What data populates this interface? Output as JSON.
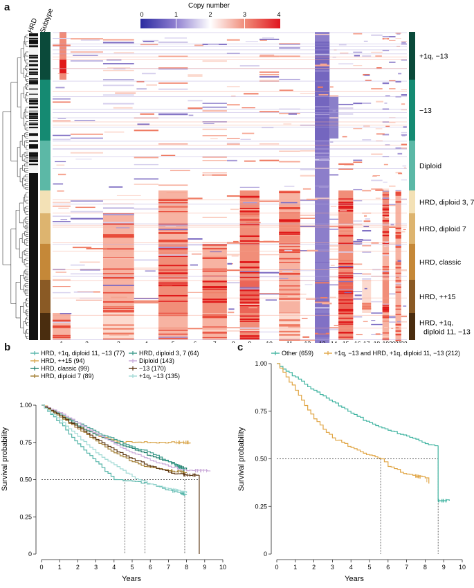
{
  "panels": {
    "a": "a",
    "b": "b",
    "c": "c"
  },
  "heatmap": {
    "col_hrd": "HRD",
    "col_subtype": "Subtype",
    "colorbar_title": "Copy number",
    "colorbar_ticks": [
      "0",
      "1",
      "2",
      "3",
      "4"
    ],
    "chromosomes": [
      "1",
      "2",
      "3",
      "4",
      "5",
      "6",
      "7",
      "8",
      "9",
      "10",
      "11",
      "12",
      "13",
      "14",
      "15",
      "16",
      "17",
      "18",
      "19",
      "20",
      "21",
      "22"
    ],
    "groups": [
      {
        "label": "+1q, −13",
        "color": "#0b4a3a"
      },
      {
        "label": "−13",
        "color": "#158a72"
      },
      {
        "label": "Diploid",
        "color": "#5cb8a6"
      },
      {
        "label": "HRD, diploid 3, 7",
        "color": "#f3e1b6"
      },
      {
        "label": "HRD, diploid 7",
        "color": "#ddb46f"
      },
      {
        "label": "HRD, classic",
        "color": "#c58838"
      },
      {
        "label": "HRD, ++15",
        "color": "#8a5a25"
      },
      {
        "label": "HRD, +1q,",
        "label2": "diploid 11, −13",
        "color": "#4a2d0f"
      }
    ]
  },
  "plot_b": {
    "legend": [
      {
        "label": "HRD, +1q, diploid 11, −13 (77)",
        "color": "#52b3a7"
      },
      {
        "label": "HRD, ++15 (94)",
        "color": "#d8a449"
      },
      {
        "label": "HRD, classic (99)",
        "color": "#1d7c6a"
      },
      {
        "label": "HRD, diploid 7 (89)",
        "color": "#a07a2c"
      },
      {
        "label": "HRD, diploid 3, 7 (64)",
        "color": "#3a9a8a"
      },
      {
        "label": "Diploid (143)",
        "color": "#c8a7d8"
      },
      {
        "label": "−13 (170)",
        "color": "#5b3410"
      },
      {
        "label": "+1q, −13 (135)",
        "color": "#9fd9d4"
      }
    ],
    "ylabel": "Survival probability",
    "xlabel": "Years",
    "yticks": [
      "0",
      "0.25",
      "0.50",
      "0.75",
      "1.00"
    ],
    "xticks": [
      "0",
      "1",
      "2",
      "3",
      "4",
      "5",
      "6",
      "7",
      "8",
      "9",
      "10"
    ]
  },
  "plot_c": {
    "legend": [
      {
        "label": "Other (659)",
        "color": "#3fb3a0"
      },
      {
        "label": "+1q, −13 and HRD, +1q, diploid 11, −13 (212)",
        "color": "#e0a442"
      }
    ],
    "ylabel": "Survival probability",
    "xlabel": "Years",
    "yticks": [
      "0",
      "0.25",
      "0.50",
      "0.75",
      "1.00"
    ],
    "xticks": [
      "0",
      "1",
      "2",
      "3",
      "4",
      "5",
      "6",
      "7",
      "8",
      "9",
      "10"
    ]
  },
  "chart_data": [
    {
      "type": "line",
      "title": "",
      "xlabel": "Years",
      "ylabel": "Survival probability",
      "xlim": [
        0,
        10
      ],
      "ylim": [
        0,
        1
      ],
      "series": [
        {
          "name": "HRD, +1q, diploid 11, −13 (77)",
          "x": [
            0,
            1,
            2,
            3,
            4,
            5,
            6,
            7,
            8
          ],
          "y": [
            1.0,
            0.88,
            0.74,
            0.62,
            0.5,
            0.49,
            0.47,
            0.43,
            0.4
          ]
        },
        {
          "name": "HRD, ++15 (94)",
          "x": [
            0,
            1,
            2,
            3,
            4,
            5,
            6,
            7,
            8.2
          ],
          "y": [
            1.0,
            0.94,
            0.86,
            0.8,
            0.76,
            0.75,
            0.75,
            0.75,
            0.75
          ]
        },
        {
          "name": "HRD, classic (99)",
          "x": [
            0,
            1,
            2,
            3,
            4,
            5,
            6,
            7,
            8
          ],
          "y": [
            1.0,
            0.93,
            0.86,
            0.8,
            0.75,
            0.71,
            0.66,
            0.62,
            0.57
          ]
        },
        {
          "name": "HRD, diploid 7 (89)",
          "x": [
            0,
            1,
            2,
            3,
            4,
            5,
            6,
            7,
            8
          ],
          "y": [
            1.0,
            0.92,
            0.84,
            0.76,
            0.68,
            0.62,
            0.58,
            0.56,
            0.55
          ]
        },
        {
          "name": "HRD, diploid 3, 7 (64)",
          "x": [
            0,
            1,
            2,
            3,
            4,
            5,
            6,
            7,
            8
          ],
          "y": [
            1.0,
            0.94,
            0.88,
            0.82,
            0.77,
            0.72,
            0.68,
            0.62,
            0.56
          ]
        },
        {
          "name": "Diploid (143)",
          "x": [
            0,
            1,
            2,
            3,
            4,
            5,
            6,
            7,
            8,
            9.3
          ],
          "y": [
            1.0,
            0.95,
            0.88,
            0.81,
            0.74,
            0.68,
            0.63,
            0.59,
            0.56,
            0.56
          ]
        },
        {
          "name": "−13 (170)",
          "x": [
            0,
            1,
            2,
            3,
            4,
            5,
            6,
            7,
            8,
            8.7,
            8.7
          ],
          "y": [
            1.0,
            0.93,
            0.85,
            0.77,
            0.7,
            0.64,
            0.59,
            0.55,
            0.53,
            0.53,
            0.0
          ]
        },
        {
          "name": "+1q, −13 (135)",
          "x": [
            0,
            1,
            2,
            3,
            4,
            5,
            6,
            7,
            8
          ],
          "y": [
            1.0,
            0.9,
            0.79,
            0.68,
            0.6,
            0.52,
            0.47,
            0.44,
            0.41
          ]
        }
      ],
      "medians": [
        4.6,
        5.7,
        7.9,
        8.7
      ]
    },
    {
      "type": "line",
      "title": "",
      "xlabel": "Years",
      "ylabel": "Survival probability",
      "xlim": [
        0,
        10
      ],
      "ylim": [
        0,
        1
      ],
      "series": [
        {
          "name": "Other (659)",
          "x": [
            0,
            0.5,
            1,
            2,
            3,
            4,
            5,
            6,
            7,
            8,
            8.7,
            8.7,
            9.3
          ],
          "y": [
            1.0,
            0.96,
            0.93,
            0.86,
            0.8,
            0.74,
            0.69,
            0.65,
            0.62,
            0.58,
            0.57,
            0.28,
            0.28
          ]
        },
        {
          "name": "+1q, −13 and HRD, +1q, diploid 11, −13 (212)",
          "x": [
            0,
            0.5,
            1,
            1.5,
            2,
            3,
            4,
            5,
            5.6,
            6,
            7,
            8,
            8.2
          ],
          "y": [
            1.0,
            0.93,
            0.86,
            0.78,
            0.71,
            0.61,
            0.56,
            0.52,
            0.5,
            0.46,
            0.42,
            0.4,
            0.37
          ]
        }
      ],
      "medians": [
        5.6,
        8.7
      ]
    }
  ]
}
